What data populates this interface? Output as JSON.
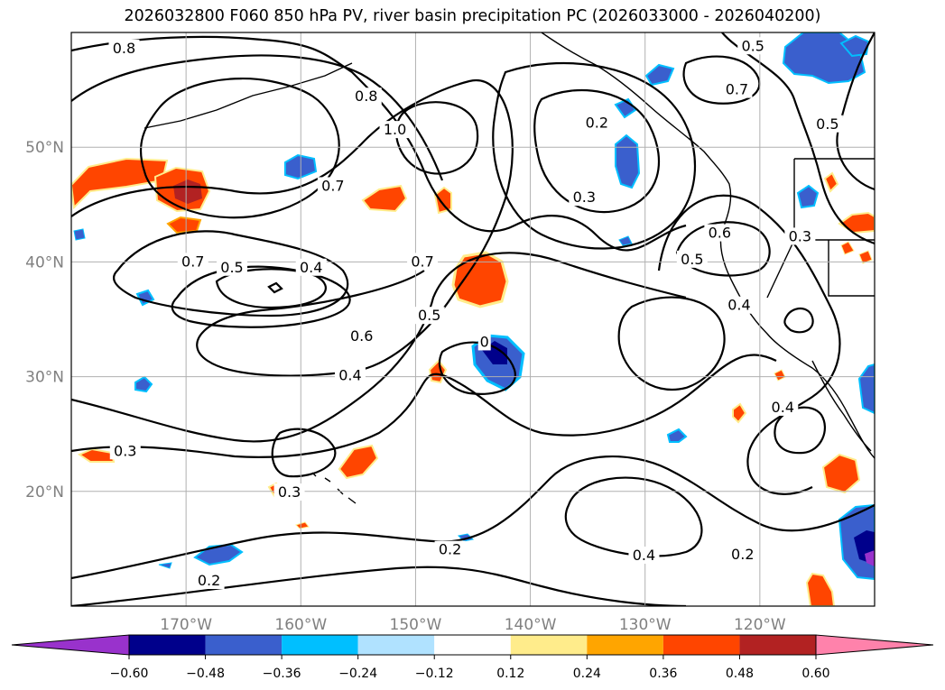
{
  "title": "2026032800 F060 850 hPa PV, river basin precipitation PC (2026033000 - 2026040200)",
  "map": {
    "lon_range": [
      -180,
      -110
    ],
    "lat_range": [
      10,
      60
    ],
    "lat_ticks": [
      {
        "value": 50,
        "label": "50°N"
      },
      {
        "value": 40,
        "label": "40°N"
      },
      {
        "value": 30,
        "label": "30°N"
      },
      {
        "value": 20,
        "label": "20°N"
      }
    ],
    "lon_ticks": [
      {
        "value": -170,
        "label": "170°W"
      },
      {
        "value": -160,
        "label": "160°W"
      },
      {
        "value": -150,
        "label": "150°W"
      },
      {
        "value": -140,
        "label": "140°W"
      },
      {
        "value": -130,
        "label": "130°W"
      },
      {
        "value": -120,
        "label": "120°W"
      }
    ],
    "gridline_color": "#b0b0b0",
    "coastline_color": "#000000"
  },
  "contour_labels": [
    {
      "text": "0.8",
      "lon": -175.4,
      "lat": 58.6
    },
    {
      "text": "1.0",
      "lon": -151.8,
      "lat": 51.5
    },
    {
      "text": "0.8",
      "lon": -154.3,
      "lat": 54.4
    },
    {
      "text": "0.7",
      "lon": -157.2,
      "lat": 46.6
    },
    {
      "text": "0.7",
      "lon": -169.4,
      "lat": 40.0
    },
    {
      "text": "0.5",
      "lon": -166.0,
      "lat": 39.5
    },
    {
      "text": "0.4",
      "lon": -159.1,
      "lat": 39.5
    },
    {
      "text": "0.7",
      "lon": -149.4,
      "lat": 40.0
    },
    {
      "text": "0.6",
      "lon": -154.7,
      "lat": 33.5
    },
    {
      "text": "0.5",
      "lon": -148.8,
      "lat": 35.3
    },
    {
      "text": "0.4",
      "lon": -155.7,
      "lat": 30.1
    },
    {
      "text": "0.3",
      "lon": -135.3,
      "lat": 45.6
    },
    {
      "text": "0.2",
      "lon": -134.2,
      "lat": 52.1
    },
    {
      "text": "0.6",
      "lon": -123.5,
      "lat": 42.5
    },
    {
      "text": "0.5",
      "lon": -125.9,
      "lat": 40.2
    },
    {
      "text": "0.7",
      "lon": -122.0,
      "lat": 55.0
    },
    {
      "text": "0.5",
      "lon": -120.6,
      "lat": 58.8
    },
    {
      "text": "0.5",
      "lon": -114.1,
      "lat": 52.0
    },
    {
      "text": "0.3",
      "lon": -116.5,
      "lat": 42.2
    },
    {
      "text": "0.4",
      "lon": -121.8,
      "lat": 36.2
    },
    {
      "text": "0.4",
      "lon": -118.0,
      "lat": 27.3
    },
    {
      "text": "0.3",
      "lon": -175.3,
      "lat": 23.5
    },
    {
      "text": "0.3",
      "lon": -161.0,
      "lat": 19.9
    },
    {
      "text": "0.2",
      "lon": -168.0,
      "lat": 12.2
    },
    {
      "text": "0.2",
      "lon": -147.0,
      "lat": 14.9
    },
    {
      "text": "0.4",
      "lon": -130.1,
      "lat": 14.4
    },
    {
      "text": "0.2",
      "lon": -121.5,
      "lat": 14.5
    },
    {
      "text": "0",
      "lon": -144.0,
      "lat": 33.0
    }
  ],
  "colorbar": {
    "levels": [
      -0.6,
      -0.48,
      -0.36,
      -0.24,
      -0.12,
      0.12,
      0.24,
      0.36,
      0.48,
      0.6
    ],
    "tick_labels": [
      "−0.60",
      "−0.48",
      "−0.36",
      "−0.24",
      "−0.12",
      "0.12",
      "0.24",
      "0.36",
      "0.48",
      "0.60"
    ],
    "colors": [
      "#9932cc",
      "#00008b",
      "#3a5fcd",
      "#00bfff",
      "#b0e2ff",
      "#ffffff",
      "#ffec8b",
      "#ffa500",
      "#ff4500",
      "#b22222",
      "#ff82ab"
    ]
  }
}
